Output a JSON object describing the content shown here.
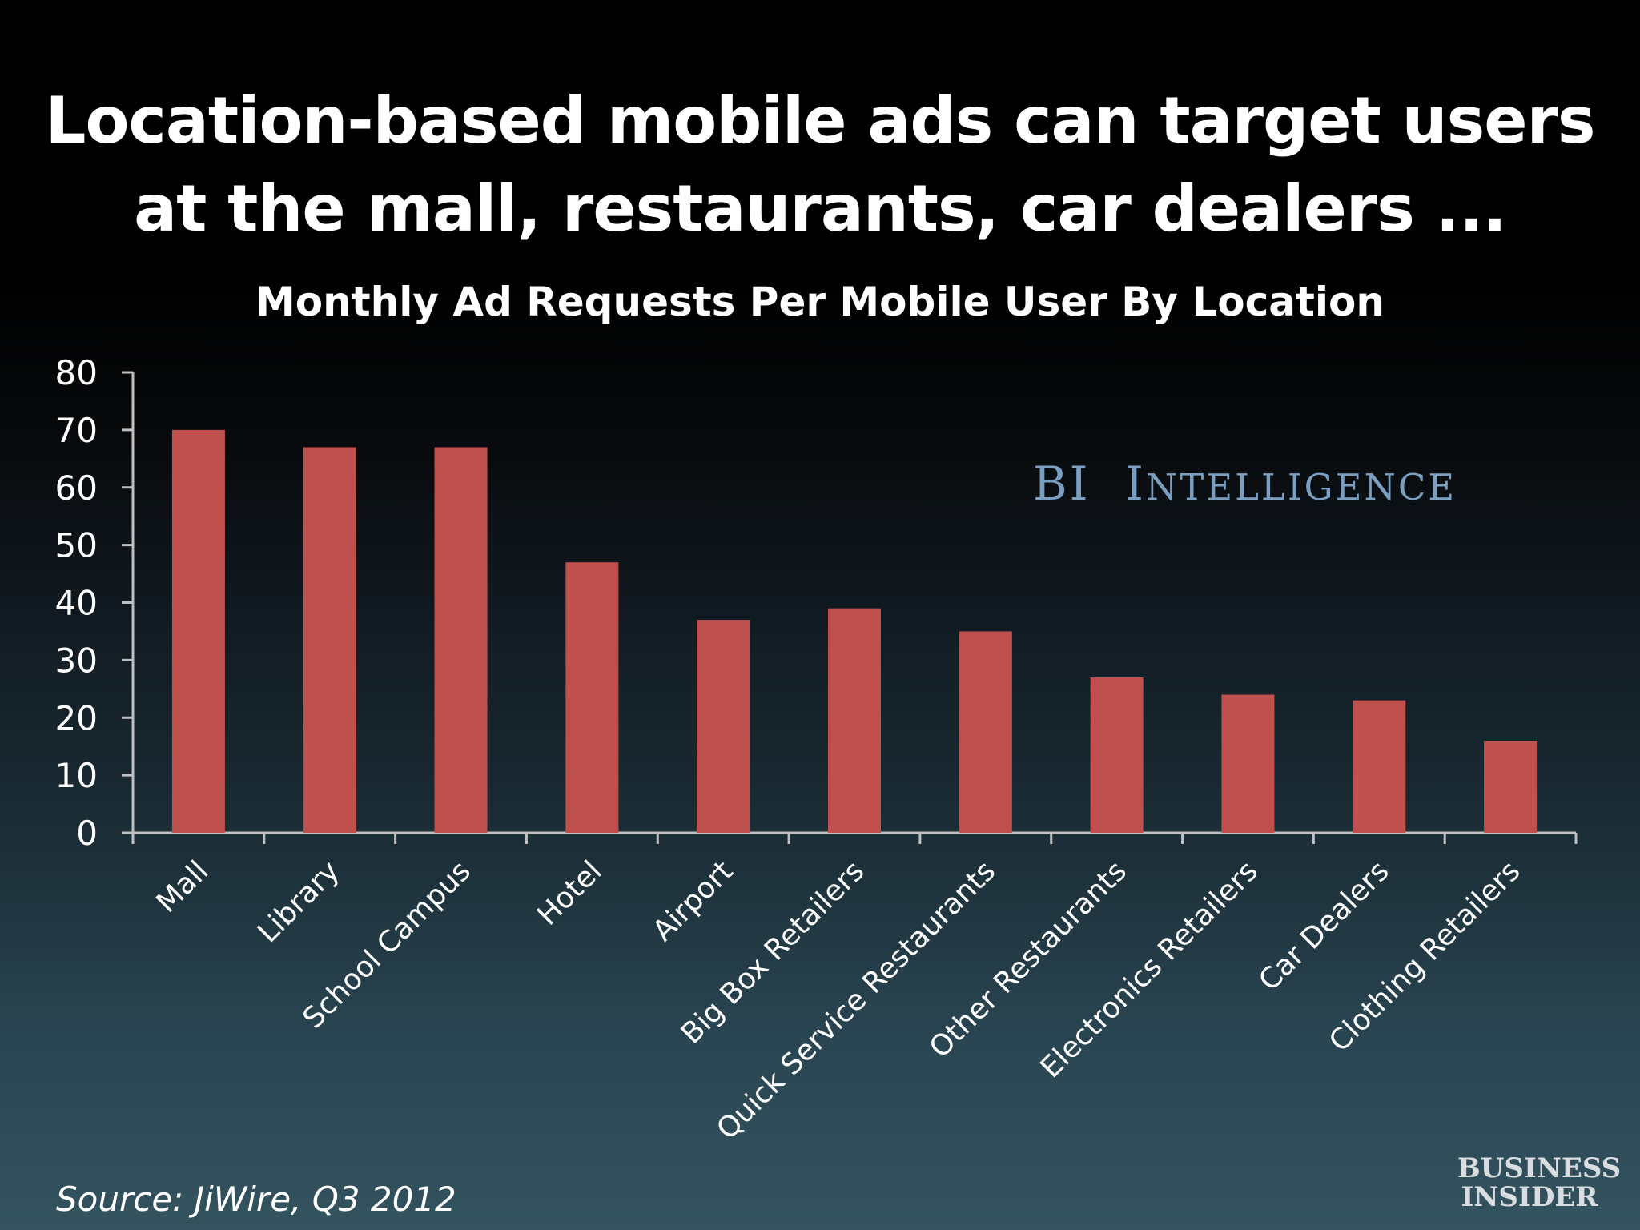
{
  "title_lines": [
    "Location-based mobile ads can target users",
    "at the mall, restaurants, car dealers ..."
  ],
  "source": "Source: JiWire, Q3 2012",
  "watermark": {
    "first": "BI",
    "second_initial": "I",
    "second_rest": "NTELLIGENCE"
  },
  "brand_logo": {
    "line1": "BUSINESS",
    "line2": "INSIDER"
  },
  "colors": {
    "bar": "#c0504d",
    "axis": "#bfbfbf",
    "text": "#ffffff",
    "watermark": "#7a9fc1"
  },
  "chart_data": {
    "type": "bar",
    "title": "Monthly Ad Requests Per Mobile User By Location",
    "xlabel": "",
    "ylabel": "",
    "categories": [
      "Mall",
      "Library",
      "School Campus",
      "Hotel",
      "Airport",
      "Big Box Retailers",
      "Quick Service Restaurants",
      "Other Restaurants",
      "Electronics Retailers",
      "Car Dealers",
      "Clothing Retailers"
    ],
    "values": [
      70,
      67,
      67,
      47,
      37,
      39,
      35,
      27,
      24,
      23,
      16
    ],
    "ylim": [
      0,
      80
    ],
    "yticks": [
      0,
      10,
      20,
      30,
      40,
      50,
      60,
      70,
      80
    ],
    "grid": false,
    "legend": "none"
  }
}
